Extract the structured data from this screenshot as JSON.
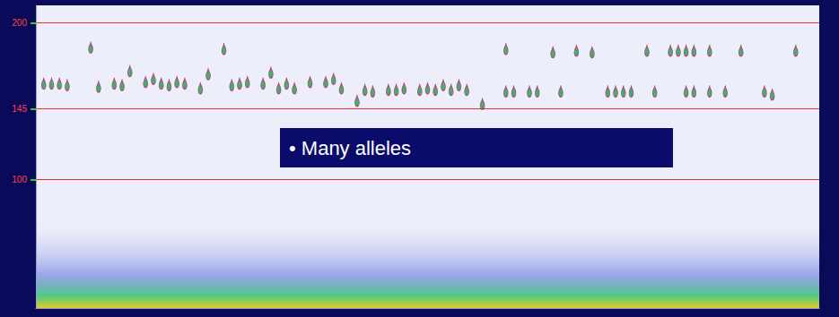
{
  "chart_data": {
    "type": "scatter",
    "annotation": "• Many alleles",
    "x": [
      1,
      2,
      3,
      4,
      7,
      8,
      10,
      11,
      12,
      14,
      15,
      16,
      17,
      18,
      19,
      21,
      22,
      24,
      25,
      26,
      27,
      29,
      30,
      31,
      32,
      33,
      35,
      37,
      38,
      39,
      41,
      42,
      43,
      45,
      46,
      47,
      49,
      50,
      51,
      52,
      53,
      54,
      55,
      57,
      60,
      60,
      61,
      63,
      64,
      66,
      67,
      69,
      71,
      73,
      74,
      75,
      76,
      78,
      79,
      81,
      82,
      83,
      84,
      86,
      83,
      84,
      86,
      88,
      90,
      93,
      94,
      97
    ],
    "values": [
      165,
      165,
      165,
      164,
      188,
      163,
      165,
      164,
      173,
      166,
      168,
      165,
      164,
      166,
      165,
      162,
      171,
      187,
      164,
      165,
      166,
      165,
      172,
      162,
      165,
      162,
      166,
      166,
      168,
      162,
      154,
      161,
      160,
      161,
      161,
      162,
      161,
      162,
      161,
      164,
      161,
      164,
      161,
      152,
      187,
      160,
      160,
      160,
      160,
      185,
      160,
      186,
      185,
      160,
      160,
      160,
      160,
      186,
      160,
      186,
      186,
      186,
      186,
      186,
      160,
      160,
      160,
      160,
      186,
      160,
      158,
      186
    ],
    "color": "#16a04a",
    "marker": "pin",
    "xlim": [
      0,
      100
    ],
    "ylim": [
      18,
      211
    ],
    "yticks": [
      100,
      145,
      200
    ],
    "grid": true,
    "tick_labels": "y"
  }
}
